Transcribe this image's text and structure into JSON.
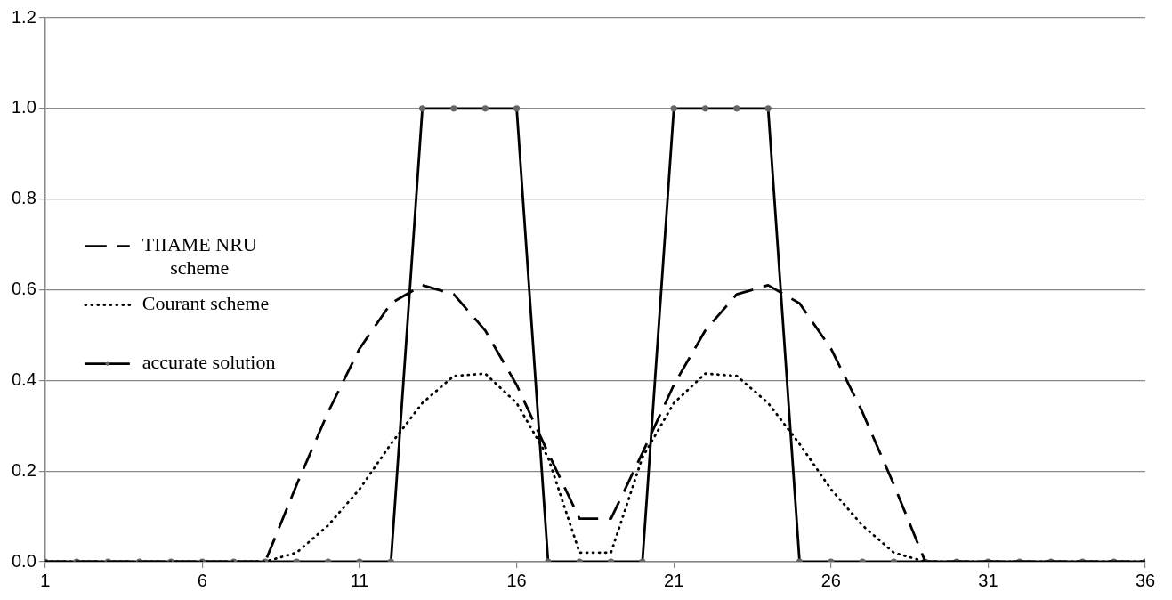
{
  "chart_data": {
    "type": "line",
    "x": [
      1,
      2,
      3,
      4,
      5,
      6,
      7,
      8,
      9,
      10,
      11,
      12,
      13,
      14,
      15,
      16,
      17,
      18,
      19,
      20,
      21,
      22,
      23,
      24,
      25,
      26,
      27,
      28,
      29,
      30,
      31,
      32,
      33,
      34,
      35,
      36
    ],
    "series": [
      {
        "name": "TIIAME NRU scheme",
        "color": "#000000",
        "line_style": "dashed",
        "marker": "none",
        "values": [
          0,
          0,
          0,
          0,
          0,
          0,
          0,
          0,
          0.17,
          0.33,
          0.47,
          0.57,
          0.61,
          0.59,
          0.51,
          0.39,
          0.24,
          0.095,
          0.095,
          0.24,
          0.39,
          0.51,
          0.59,
          0.61,
          0.57,
          0.47,
          0.33,
          0.17,
          0,
          0,
          0,
          0,
          0,
          0,
          0,
          0
        ]
      },
      {
        "name": "Courant scheme",
        "color": "#000000",
        "line_style": "dotted",
        "marker": "none",
        "values": [
          0,
          0,
          0,
          0,
          0,
          0,
          0,
          0,
          0.02,
          0.08,
          0.16,
          0.26,
          0.35,
          0.41,
          0.415,
          0.35,
          0.23,
          0.02,
          0.02,
          0.23,
          0.35,
          0.415,
          0.41,
          0.35,
          0.26,
          0.16,
          0.08,
          0.02,
          0,
          0,
          0,
          0,
          0,
          0,
          0,
          0
        ]
      },
      {
        "name": "accurate solution",
        "color": "#000000",
        "line_style": "solid",
        "marker": "circle",
        "values": [
          0,
          0,
          0,
          0,
          0,
          0,
          0,
          0,
          0,
          0,
          0,
          0,
          1,
          1,
          1,
          1,
          0,
          0,
          0,
          0,
          1,
          1,
          1,
          1,
          0,
          0,
          0,
          0,
          0,
          0,
          0,
          0,
          0,
          0,
          0,
          0
        ]
      }
    ],
    "xlim": [
      1,
      36
    ],
    "xticks": [
      1,
      6,
      11,
      16,
      21,
      26,
      31,
      36
    ],
    "ylim": [
      0,
      1.2
    ],
    "yticks": [
      {
        "value": 0,
        "label": "0.0"
      },
      {
        "value": 0.2,
        "label": "0.2"
      },
      {
        "value": 0.4,
        "label": "0.4"
      },
      {
        "value": 0.6,
        "label": "0.6"
      },
      {
        "value": 0.8,
        "label": "0.8"
      },
      {
        "value": 1.0,
        "label": "1.0"
      },
      {
        "value": 1.2,
        "label": "1.2"
      }
    ],
    "grid": "y",
    "legend": "left"
  }
}
